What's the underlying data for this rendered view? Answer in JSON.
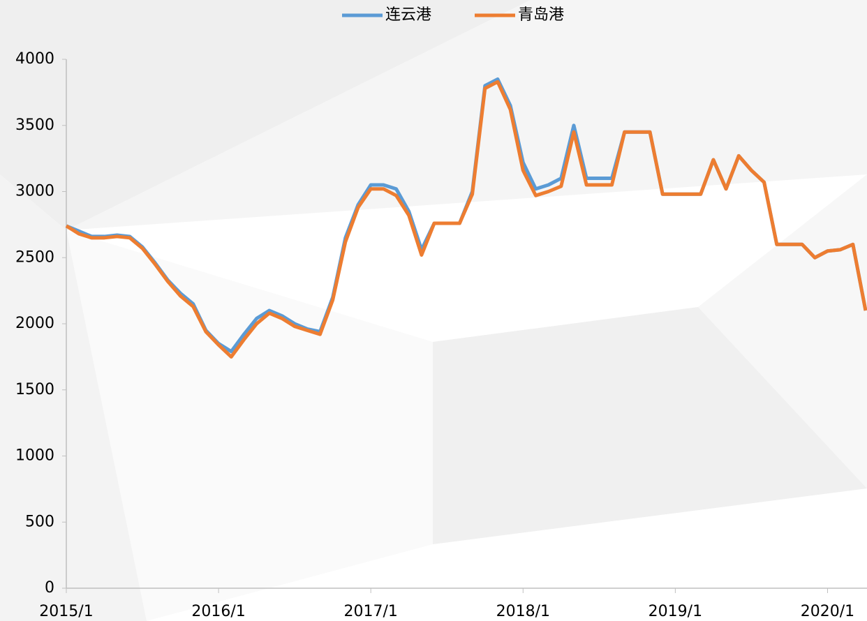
{
  "chart_data": {
    "type": "line",
    "categories": [
      "2015/1",
      null,
      null,
      null,
      null,
      null,
      null,
      null,
      null,
      null,
      null,
      null,
      "2016/1",
      null,
      null,
      null,
      null,
      null,
      null,
      null,
      null,
      null,
      null,
      null,
      "2017/1",
      null,
      null,
      null,
      null,
      null,
      null,
      null,
      null,
      null,
      null,
      null,
      "2018/1",
      null,
      null,
      null,
      null,
      null,
      null,
      null,
      null,
      null,
      null,
      null,
      "2019/1",
      null,
      null,
      null,
      null,
      null,
      null,
      null,
      null,
      null,
      null,
      null,
      "2020/1",
      null,
      null,
      null
    ],
    "series": [
      {
        "name": "连云港",
        "color": "#5b9bd5",
        "values": [
          2740,
          2700,
          2660,
          2660,
          2670,
          2660,
          2580,
          2460,
          2330,
          2230,
          2150,
          1950,
          1850,
          1790,
          1920,
          2040,
          2100,
          2060,
          2000,
          1960,
          1940,
          2200,
          2650,
          2900,
          3050,
          3050,
          3020,
          2850,
          2560,
          2760,
          2760,
          2760,
          3000,
          3800,
          3850,
          3650,
          3220,
          3020,
          3050,
          3100,
          3500,
          3100,
          3100,
          3100,
          3450,
          3450,
          3450,
          2980,
          2980,
          2980,
          2980,
          3240,
          3020,
          3270,
          3160,
          3070,
          2600,
          2600,
          2600,
          2500,
          2550,
          2560,
          2600,
          2100
        ]
      },
      {
        "name": "青岛港",
        "color": "#ed7d31",
        "values": [
          2740,
          2680,
          2650,
          2650,
          2660,
          2650,
          2570,
          2450,
          2320,
          2210,
          2130,
          1940,
          1840,
          1750,
          1880,
          2000,
          2080,
          2040,
          1980,
          1950,
          1920,
          2180,
          2620,
          2880,
          3020,
          3020,
          2970,
          2820,
          2520,
          2760,
          2760,
          2760,
          2980,
          3780,
          3830,
          3620,
          3160,
          2970,
          3000,
          3040,
          3450,
          3050,
          3050,
          3050,
          3450,
          3450,
          3450,
          2980,
          2980,
          2980,
          2980,
          3240,
          3020,
          3270,
          3160,
          3070,
          2600,
          2600,
          2600,
          2500,
          2550,
          2560,
          2600,
          2100
        ]
      }
    ],
    "ylim": [
      0,
      4000
    ],
    "yticks": [
      0,
      500,
      1000,
      1500,
      2000,
      2500,
      3000,
      3500,
      4000
    ],
    "grid": false,
    "legend": "top"
  }
}
